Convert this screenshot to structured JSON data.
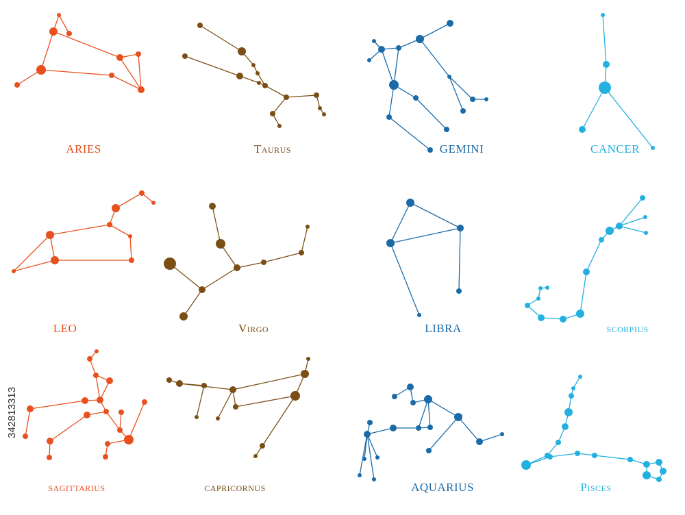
{
  "constellations": [
    {
      "name": "ARIES"
    },
    {
      "name": "Taurus"
    },
    {
      "name": "GEMINI"
    },
    {
      "name": "CANCER"
    },
    {
      "name": "LEO"
    },
    {
      "name": "Virgo"
    },
    {
      "name": "LIBRA"
    },
    {
      "name": "scorpius"
    },
    {
      "name": "sagittarius"
    },
    {
      "name": "capricornus"
    },
    {
      "name": "AQUARIUS"
    },
    {
      "name": "Pisces"
    }
  ],
  "watermark": {
    "id": "342813313"
  }
}
